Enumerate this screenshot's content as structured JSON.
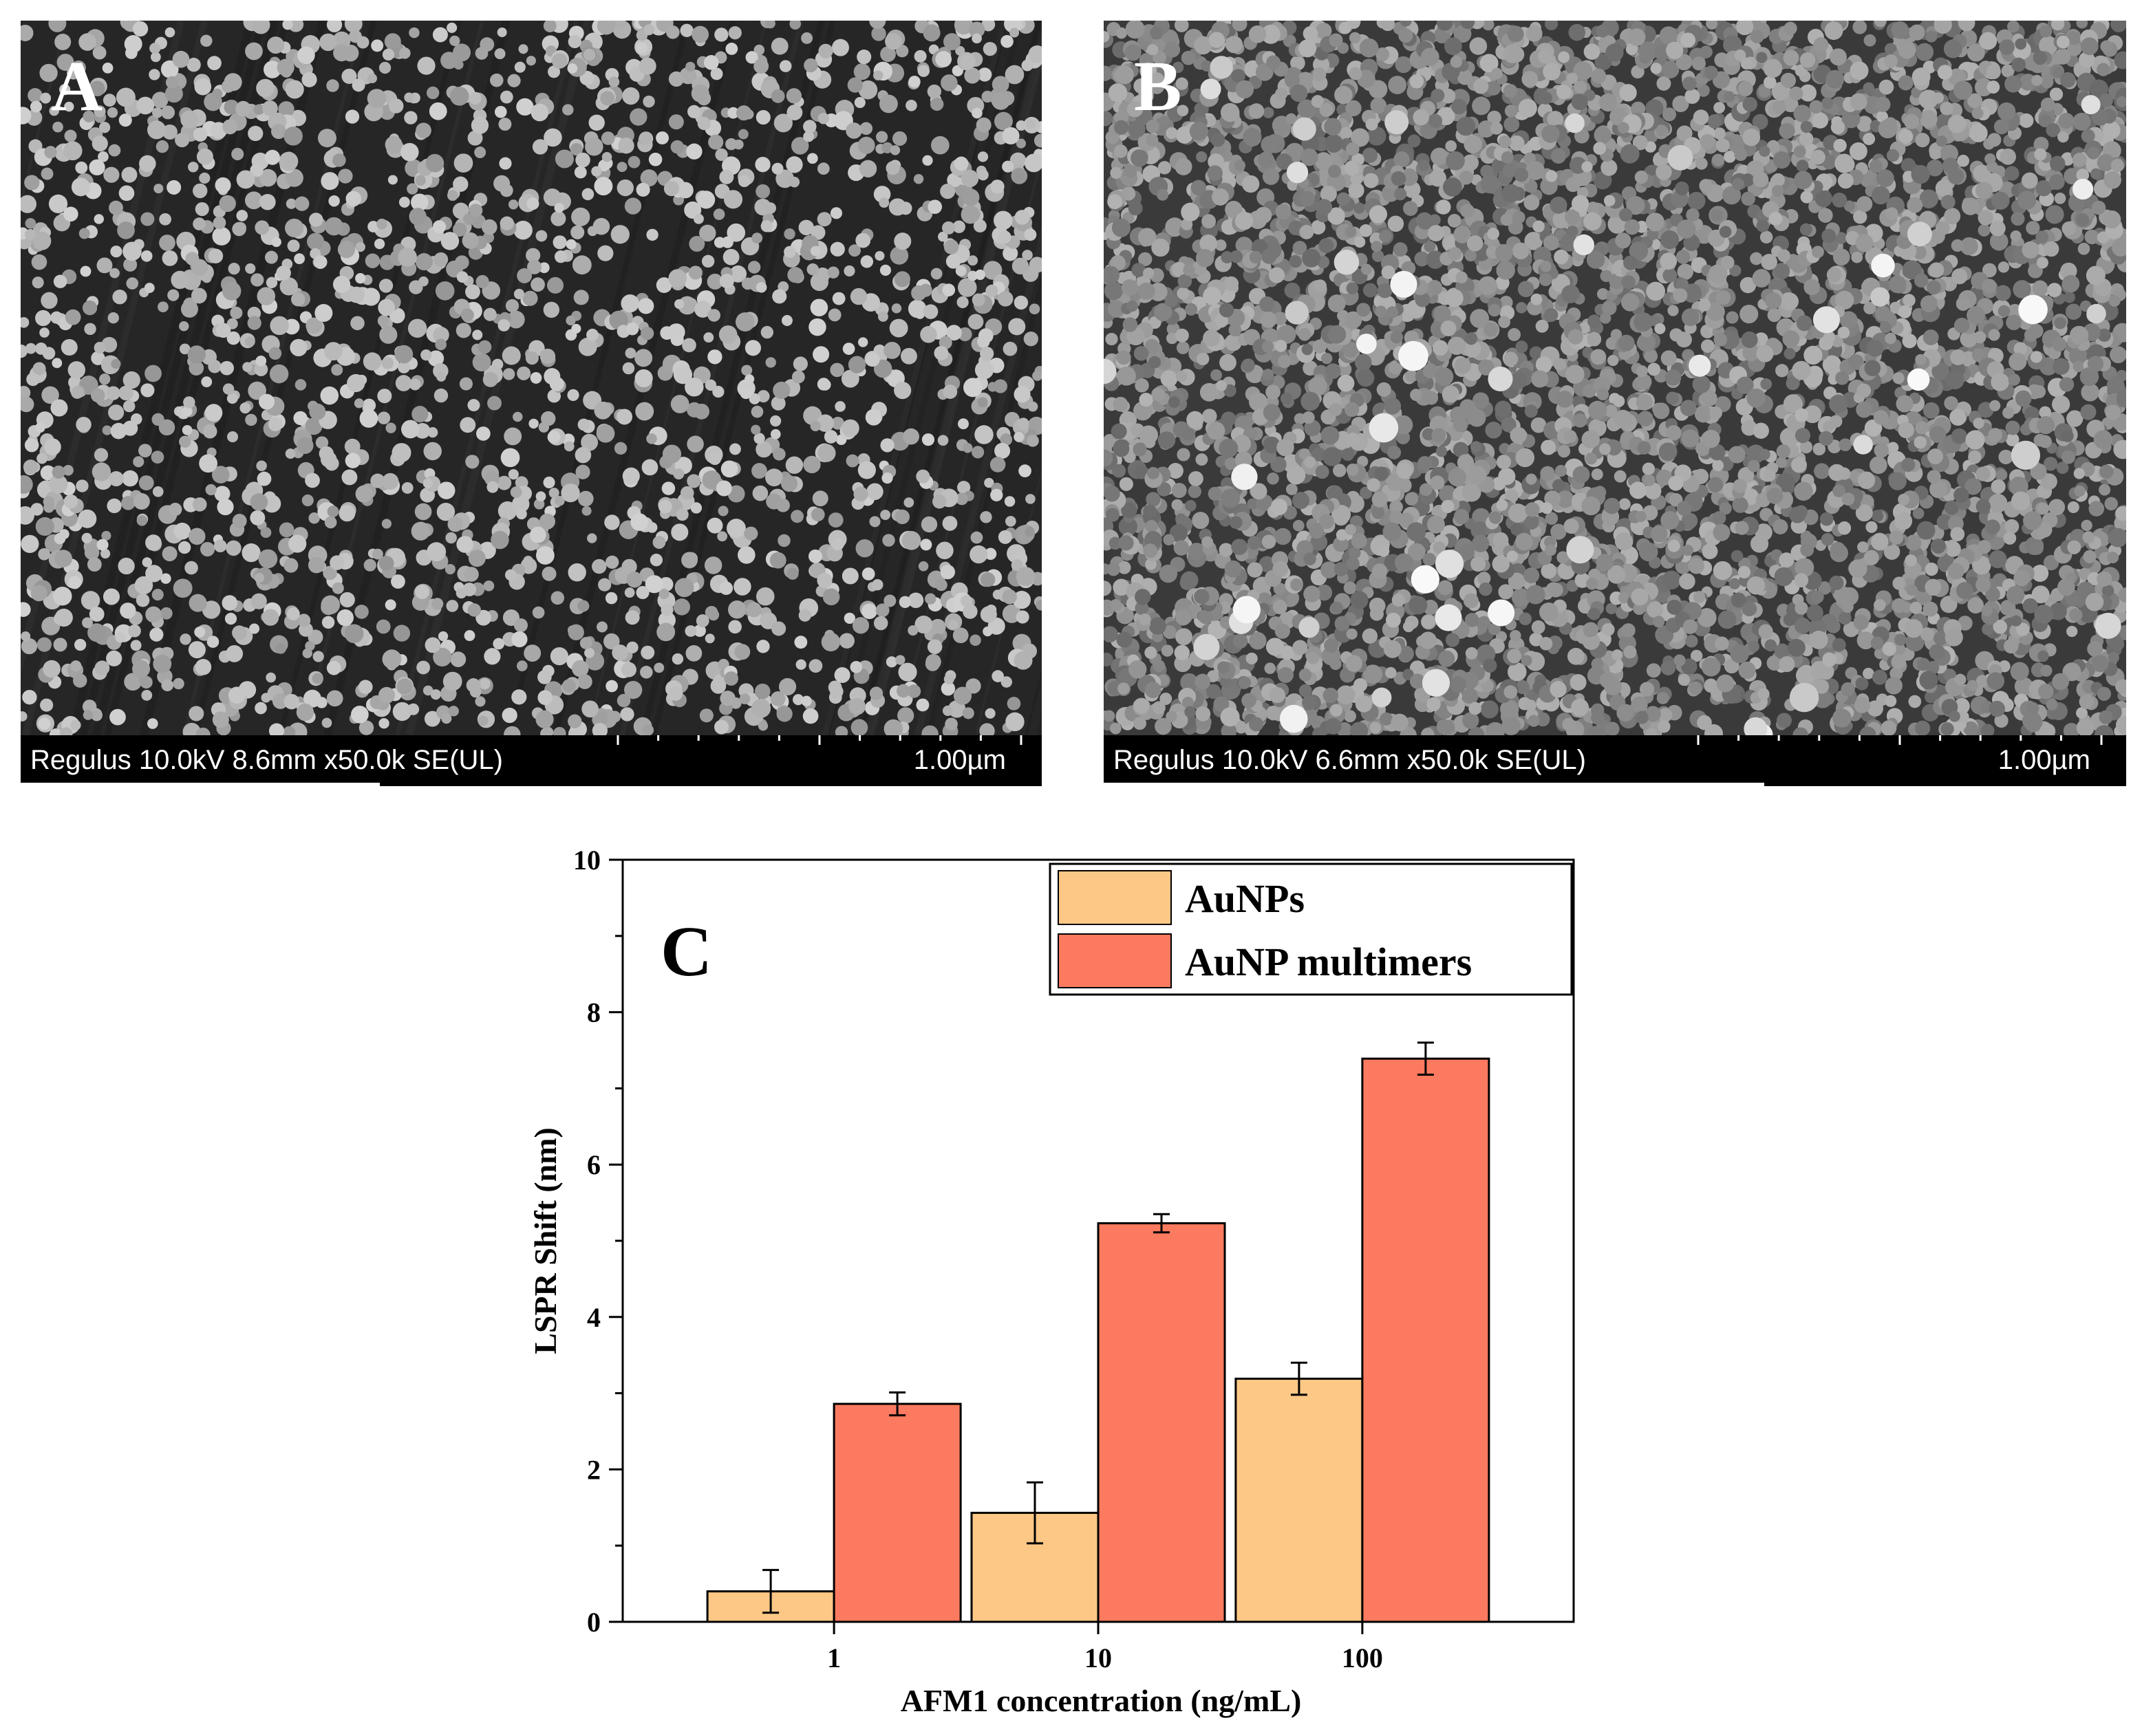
{
  "panels": [
    {
      "letter": "A",
      "info": "Regulus 10.0kV 8.6mm x50.0k SE(UL)",
      "scale": "1.00µm"
    },
    {
      "letter": "B",
      "info": "Regulus 10.0kV 6.6mm x50.0k SE(UL)",
      "scale": "1.00µm"
    }
  ],
  "colors": {
    "aunps": "#FDC886",
    "multimers": "#FC7A5F",
    "sem_bg": "#262626"
  },
  "chart_data": {
    "type": "bar",
    "panel_label": "C",
    "categories": [
      "1",
      "10",
      "100"
    ],
    "series": [
      {
        "name": "AuNPs",
        "values": [
          0.4,
          1.43,
          3.19
        ],
        "errors": [
          0.28,
          0.4,
          0.21
        ],
        "color": "#FDC886"
      },
      {
        "name": "AuNP multimers",
        "values": [
          2.86,
          5.23,
          7.39
        ],
        "errors": [
          0.15,
          0.12,
          0.21
        ],
        "color": "#FC7A5F"
      }
    ],
    "xlabel": "AFM1 concentration (ng/mL)",
    "ylabel": "LSPR Shift (nm)",
    "ylim": [
      0,
      10
    ],
    "yticks": [
      0,
      2,
      4,
      6,
      8,
      10
    ],
    "legend_position": "top-right",
    "grid": false
  }
}
